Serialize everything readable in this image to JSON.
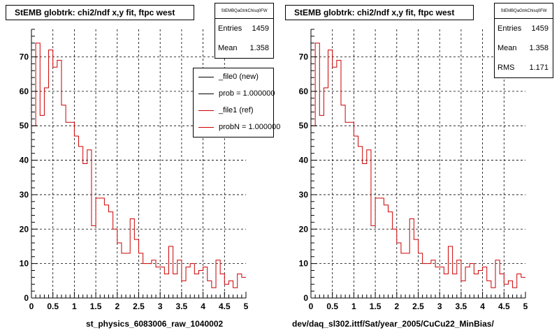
{
  "panels": [
    {
      "title": "StEMB globtrk: chi2/ndf x,y fit, ftpc west",
      "stats": {
        "name": "StEMBQaGtrkChisq0FW",
        "rows": [
          {
            "label": "Entries",
            "value": "1459"
          },
          {
            "label": "Mean",
            "value": "1.358"
          }
        ]
      },
      "legend": [
        {
          "label": "_file0 (new)",
          "color": "#000000"
        },
        {
          "label": "prob = 1.000000",
          "color": "#000000"
        },
        {
          "label": "_file1 (ref)",
          "color": "#cc0000"
        },
        {
          "label": "probN = 1.000000",
          "color": "#cc0000"
        }
      ],
      "xtitle": "st_physics_6083006_raw_1040002"
    },
    {
      "title": "StEMB globtrk: chi2/ndf x,y fit, ftpc west",
      "stats": {
        "name": "StEMBQaGtrkChisq0FW",
        "rows": [
          {
            "label": "Entries",
            "value": "1459"
          },
          {
            "label": "Mean",
            "value": "1.358"
          },
          {
            "label": "RMS",
            "value": "1.171"
          }
        ]
      },
      "xtitle": "dev/daq_sl302.ittf/Sat/year_2005/CuCu22_MinBias/"
    }
  ],
  "chart_data": [
    {
      "type": "histogram",
      "title": "StEMB globtrk: chi2/ndf x,y fit, ftpc west",
      "xlabel": "st_physics_6083006_raw_1040002",
      "ylabel": "",
      "xlim": [
        0,
        5
      ],
      "ylim": [
        0,
        78
      ],
      "xticks": [
        "0",
        "0.5",
        "1",
        "1.5",
        "2",
        "2.5",
        "3",
        "3.5",
        "4",
        "4.5",
        "5"
      ],
      "yticks": [
        "0",
        "10",
        "20",
        "30",
        "40",
        "50",
        "60",
        "70"
      ],
      "grid": true,
      "bin_width": 0.1,
      "series": [
        {
          "name": "_file1 (ref)",
          "color": "#cc0000",
          "values": [
            50,
            74,
            53,
            61,
            72,
            67,
            69,
            56,
            51,
            51,
            47,
            44,
            39,
            43,
            21,
            29,
            29,
            27,
            25,
            20,
            16,
            13,
            13,
            23,
            17,
            13,
            10,
            10,
            11,
            9,
            9,
            7,
            15,
            7,
            11,
            5,
            9,
            10,
            7,
            8,
            9,
            5,
            3,
            11,
            7,
            4,
            5,
            3,
            7,
            6
          ]
        }
      ]
    },
    {
      "type": "histogram",
      "title": "StEMB globtrk: chi2/ndf x,y fit, ftpc west",
      "xlabel": "dev/daq_sl302.ittf/Sat/year_2005/CuCu22_MinBias/",
      "ylabel": "",
      "xlim": [
        0,
        5
      ],
      "ylim": [
        0,
        78
      ],
      "xticks": [
        "0",
        "0.5",
        "1",
        "1.5",
        "2",
        "2.5",
        "3",
        "3.5",
        "4",
        "4.5",
        "5"
      ],
      "yticks": [
        "0",
        "10",
        "20",
        "30",
        "40",
        "50",
        "60",
        "70"
      ],
      "grid": true,
      "bin_width": 0.1,
      "series": [
        {
          "name": "",
          "color": "#cc0000",
          "values": [
            50,
            74,
            53,
            61,
            72,
            67,
            69,
            56,
            51,
            51,
            47,
            44,
            39,
            43,
            21,
            29,
            29,
            27,
            25,
            20,
            16,
            13,
            13,
            23,
            17,
            13,
            10,
            10,
            11,
            9,
            9,
            7,
            15,
            7,
            11,
            5,
            9,
            10,
            7,
            8,
            9,
            5,
            3,
            11,
            7,
            4,
            5,
            3,
            7,
            6
          ]
        }
      ]
    }
  ]
}
